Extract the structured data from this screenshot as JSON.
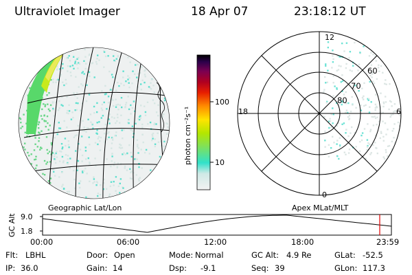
{
  "header": {
    "title": "Ultraviolet Imager",
    "date": "18 Apr 07",
    "time": "23:18:12 UT"
  },
  "colorbar": {
    "unit_label": "photon cm⁻²s⁻¹",
    "tick_labels": [
      "100",
      "10"
    ],
    "scale": "log",
    "colors": [
      "#f2f2f2",
      "#cfe9e6",
      "#31e1ca",
      "#7fe15a",
      "#b4e600",
      "#ffe400",
      "#ff8c00",
      "#e81f00",
      "#b00021",
      "#7a0052",
      "#2a004a",
      "#000000"
    ]
  },
  "geo_panel": {
    "label": "Geographic Lat/Lon"
  },
  "polar_panel": {
    "label": "Apex MLat/MLT",
    "mlt_labels": {
      "top": "12",
      "left": "18",
      "right": "6",
      "bottom": "0"
    },
    "lat_labels": [
      "60",
      "70",
      "80"
    ]
  },
  "altitude_strip": {
    "axis_label": "GC Alt",
    "y_ticks": [
      "9.0",
      "1.8"
    ],
    "time_ticks": [
      "00:00",
      "06:00",
      "12:00",
      "18:00",
      "23:59"
    ],
    "current_marker_time": "23:18:12"
  },
  "status": {
    "flt_label": "Flt:",
    "flt_value": "LBHL",
    "door_label": "Door:",
    "door_value": "Open",
    "mode_label": "Mode:",
    "mode_value": "Normal",
    "gcalt_label": "GC Alt:",
    "gcalt_value": "4.9 Re",
    "glat_label": "GLat:",
    "glat_value": "-52.5",
    "ip_label": "IP:",
    "ip_value": "36.0",
    "gain_label": "Gain:",
    "gain_value": "14",
    "dsp_label": "Dsp:",
    "dsp_value": "-9.1",
    "seq_label": "Seq:",
    "seq_value": "39",
    "glon_label": "GLon:",
    "glon_value": "117.3"
  }
}
